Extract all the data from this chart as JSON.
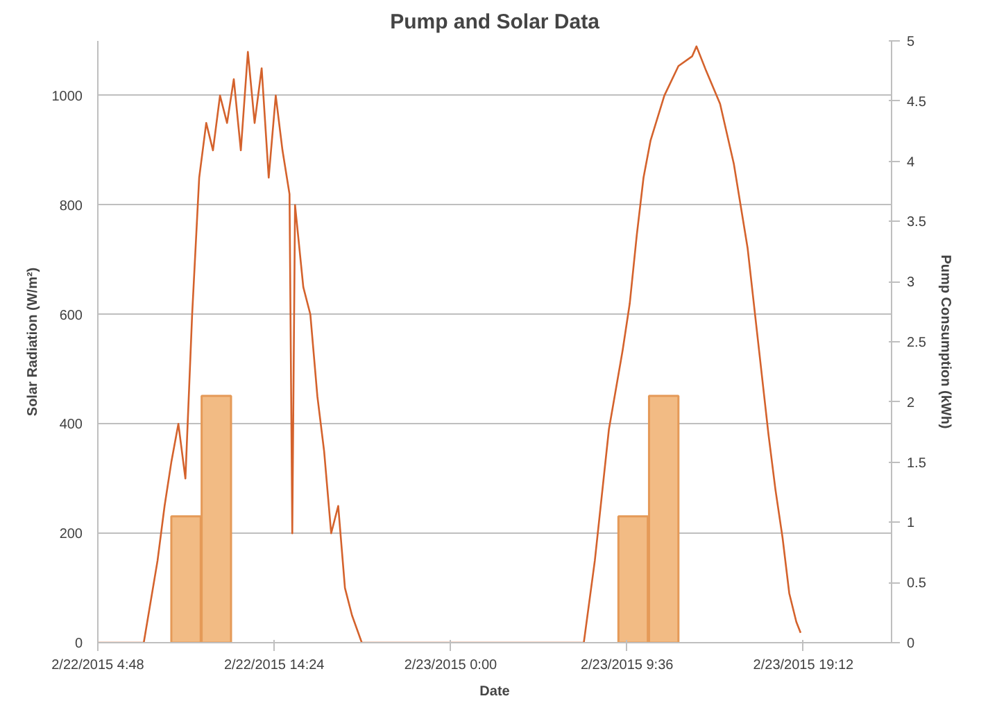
{
  "chart_data": {
    "type": "line",
    "title": "Pump and Solar Data",
    "xlabel": "Date",
    "ylabel": "Solar Radiation (W/m²)",
    "y2label": "Pump Consumption (kWh)",
    "xlim": [
      "2015-02-22T04:48",
      "2015-02-24T00:00"
    ],
    "xticks": [
      {
        "value": "2015-02-22T04:48",
        "label": "2/22/2015 4:48"
      },
      {
        "value": "2015-02-22T14:24",
        "label": "2/22/2015 14:24"
      },
      {
        "value": "2015-02-23T00:00",
        "label": "2/23/2015 0:00"
      },
      {
        "value": "2015-02-23T09:36",
        "label": "2/23/2015 9:36"
      },
      {
        "value": "2015-02-23T19:12",
        "label": "2/23/2015 19:12"
      }
    ],
    "ylim": [
      0,
      1100
    ],
    "yticks": [
      0,
      200,
      400,
      600,
      800,
      1000
    ],
    "y2lim": [
      0,
      5
    ],
    "y2ticks": [
      0,
      0.5,
      1,
      1.5,
      2,
      2.5,
      3,
      3.5,
      4,
      4.5,
      5
    ],
    "grid": "y",
    "series": [
      {
        "type": "bar",
        "axis": "y2",
        "color": "#f2bb84",
        "x": [
          "2015-02-22T09:36",
          "2015-02-22T11:15",
          "2015-02-23T09:56",
          "2015-02-23T11:36"
        ],
        "values": [
          1.05,
          2.05,
          1.05,
          2.05
        ]
      },
      {
        "color": "#d4622c",
        "x": [
          "2015-02-22T04:48",
          "2015-02-22T07:18",
          "2015-02-22T08:03",
          "2015-02-22T08:26",
          "2015-02-22T08:48",
          "2015-02-22T09:11",
          "2015-02-22T09:34",
          "2015-02-22T09:56",
          "2015-02-22T10:19",
          "2015-02-22T10:42",
          "2015-02-22T11:04",
          "2015-02-22T11:27",
          "2015-02-22T11:50",
          "2015-02-22T12:12",
          "2015-02-22T12:35",
          "2015-02-22T12:58",
          "2015-02-22T13:20",
          "2015-02-22T13:43",
          "2015-02-22T14:06",
          "2015-02-22T14:29",
          "2015-02-22T14:51",
          "2015-02-22T15:14",
          "2015-02-22T15:23",
          "2015-02-22T15:32",
          "2015-02-22T15:59",
          "2015-02-22T16:22",
          "2015-02-22T16:45",
          "2015-02-22T17:07",
          "2015-02-22T17:30",
          "2015-02-22T17:53",
          "2015-02-22T18:15",
          "2015-02-22T18:38",
          "2015-02-22T19:10",
          "2015-02-23T07:15",
          "2015-02-23T07:51",
          "2015-02-23T08:37",
          "2015-02-23T09:22",
          "2015-02-23T09:45",
          "2015-02-23T10:08",
          "2015-02-23T10:30",
          "2015-02-23T10:53",
          "2015-02-23T11:38",
          "2015-02-23T12:24",
          "2015-02-23T13:09",
          "2015-02-23T13:23",
          "2015-02-23T13:54",
          "2015-02-23T14:40",
          "2015-02-23T15:25",
          "2015-02-23T16:10",
          "2015-02-23T16:56",
          "2015-02-23T17:18",
          "2015-02-23T17:41",
          "2015-02-23T18:04",
          "2015-02-23T18:26",
          "2015-02-23T18:49",
          "2015-02-23T19:03"
        ],
        "values": [
          0,
          0,
          150,
          250,
          330,
          400,
          300,
          600,
          850,
          950,
          900,
          1000,
          950,
          1030,
          900,
          1080,
          950,
          1050,
          850,
          1000,
          900,
          820,
          200,
          800,
          650,
          600,
          450,
          350,
          200,
          250,
          100,
          50,
          0,
          0,
          150,
          390,
          535,
          620,
          745,
          850,
          918,
          1000,
          1054,
          1072,
          1090,
          1046,
          985,
          875,
          721,
          491,
          381,
          279,
          192,
          90,
          38,
          18
        ]
      }
    ]
  }
}
